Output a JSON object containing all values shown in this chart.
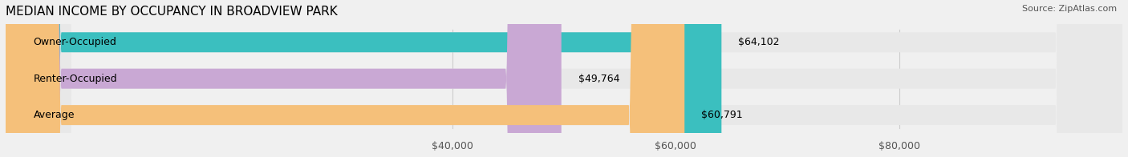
{
  "title": "MEDIAN INCOME BY OCCUPANCY IN BROADVIEW PARK",
  "source": "Source: ZipAtlas.com",
  "categories": [
    "Owner-Occupied",
    "Renter-Occupied",
    "Average"
  ],
  "values": [
    64102,
    49764,
    60791
  ],
  "labels": [
    "$64,102",
    "$49,764",
    "$60,791"
  ],
  "bar_colors": [
    "#3bbfbf",
    "#c9a8d4",
    "#f5c07a"
  ],
  "bar_edge_colors": [
    "#3bbfbf",
    "#c9a8d4",
    "#f5c07a"
  ],
  "background_color": "#f0f0f0",
  "bar_bg_color": "#e8e8e8",
  "xlim": [
    0,
    100000
  ],
  "xticks": [
    40000,
    60000,
    80000
  ],
  "xticklabels": [
    "$40,000",
    "$60,000",
    "$80,000"
  ],
  "title_fontsize": 11,
  "tick_fontsize": 9,
  "label_fontsize": 9,
  "cat_fontsize": 9
}
